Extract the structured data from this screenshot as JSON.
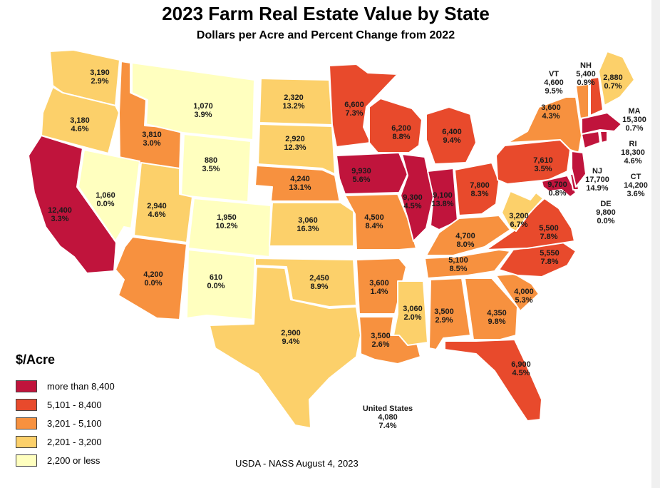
{
  "title": "2023 Farm Real Estate Value by State",
  "subtitle": "Dollars per Acre and Percent Change from 2022",
  "source": "USDA - NASS August 4, 2023",
  "legend": {
    "title": "$/Acre",
    "items": [
      {
        "label": "more than 8,400",
        "color": "#c0143c"
      },
      {
        "label": "5,101 - 8,400",
        "color": "#e84a2c"
      },
      {
        "label": "3,201 - 5,100",
        "color": "#f7913f"
      },
      {
        "label": "2,201 - 3,200",
        "color": "#fcd06a"
      },
      {
        "label": "2,200 or less",
        "color": "#ffffbf"
      }
    ]
  },
  "states": {
    "WA": {
      "value": "3,190",
      "change": "2.9%"
    },
    "OR": {
      "value": "3,180",
      "change": "4.6%"
    },
    "CA": {
      "value": "12,400",
      "change": "3.3%"
    },
    "ID": {
      "value": "3,810",
      "change": "3.0%"
    },
    "NV": {
      "value": "1,060",
      "change": "0.0%"
    },
    "MT": {
      "value": "1,070",
      "change": "3.9%"
    },
    "WY": {
      "value": "880",
      "change": "3.5%"
    },
    "UT": {
      "value": "2,940",
      "change": "4.6%"
    },
    "CO": {
      "value": "1,950",
      "change": "10.2%"
    },
    "AZ": {
      "value": "4,200",
      "change": "0.0%"
    },
    "NM": {
      "value": "610",
      "change": "0.0%"
    },
    "ND": {
      "value": "2,320",
      "change": "13.2%"
    },
    "SD": {
      "value": "2,920",
      "change": "12.3%"
    },
    "NE": {
      "value": "4,240",
      "change": "13.1%"
    },
    "KS": {
      "value": "3,060",
      "change": "16.3%"
    },
    "OK": {
      "value": "2,450",
      "change": "8.9%"
    },
    "TX": {
      "value": "2,900",
      "change": "9.4%"
    },
    "MN": {
      "value": "6,600",
      "change": "7.3%"
    },
    "IA": {
      "value": "9,930",
      "change": "5.6%"
    },
    "MO": {
      "value": "4,500",
      "change": "8.4%"
    },
    "AR": {
      "value": "3,600",
      "change": "1.4%"
    },
    "LA": {
      "value": "3,500",
      "change": "2.6%"
    },
    "WI": {
      "value": "6,200",
      "change": "8.8%"
    },
    "IL": {
      "value": "9,300",
      "change": "4.5%"
    },
    "MI": {
      "value": "6,400",
      "change": "9.4%"
    },
    "IN": {
      "value": "9,100",
      "change": "13.8%"
    },
    "OH": {
      "value": "7,800",
      "change": "8.3%"
    },
    "KY": {
      "value": "4,700",
      "change": "8.0%"
    },
    "TN": {
      "value": "5,100",
      "change": "8.5%"
    },
    "MS": {
      "value": "3,060",
      "change": "2.0%"
    },
    "AL": {
      "value": "3,500",
      "change": "2.9%"
    },
    "GA": {
      "value": "4,350",
      "change": "9.8%"
    },
    "FL": {
      "value": "6,900",
      "change": "4.5%"
    },
    "SC": {
      "value": "4,000",
      "change": "5.3%"
    },
    "NC": {
      "value": "5,550",
      "change": "7.8%"
    },
    "VA": {
      "value": "5,500",
      "change": "7.8%"
    },
    "WV": {
      "value": "3,200",
      "change": "6.7%"
    },
    "PA": {
      "value": "7,610",
      "change": "3.5%"
    },
    "NY": {
      "value": "3,600",
      "change": "4.3%"
    },
    "MD": {
      "value": "9,700",
      "change": "0.8%"
    },
    "DE": {
      "name": "DE",
      "value": "9,800",
      "change": "0.0%"
    },
    "NJ": {
      "name": "NJ",
      "value": "17,700",
      "change": "14.9%"
    },
    "CT": {
      "name": "CT",
      "value": "14,200",
      "change": "3.6%"
    },
    "RI": {
      "name": "RI",
      "value": "18,300",
      "change": "4.6%"
    },
    "MA": {
      "name": "MA",
      "value": "15,300",
      "change": "0.7%"
    },
    "VT": {
      "name": "VT",
      "value": "4,600",
      "change": "9.5%"
    },
    "NH": {
      "name": "NH",
      "value": "5,400",
      "change": "0.9%"
    },
    "ME": {
      "value": "2,880",
      "change": "0.7%"
    }
  },
  "us": {
    "name": "United States",
    "value": "4,080",
    "change": "7.4%"
  }
}
